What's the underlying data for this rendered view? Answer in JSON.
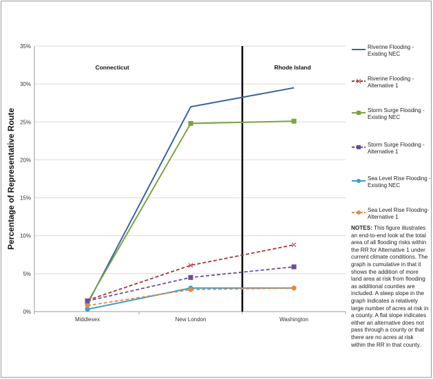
{
  "chart_data": {
    "type": "line",
    "ylabel": "Percentage of Representative Route",
    "categories": [
      "Middlesex",
      "New London",
      "Washington"
    ],
    "ylim": [
      0,
      35
    ],
    "yticks": [
      "0%",
      "5%",
      "10%",
      "15%",
      "20%",
      "25%",
      "30%",
      "35%"
    ],
    "grid": true,
    "legend_position": "right",
    "annotations": [
      {
        "text": "Connecticut",
        "x": "Middlesex"
      },
      {
        "text": "Rhode Island",
        "x": "Washington"
      }
    ],
    "divider_between": [
      "New London",
      "Washington"
    ],
    "series": [
      {
        "name": "Riverine Flooding - Existing NEC",
        "values": [
          1.0,
          27.0,
          29.5
        ],
        "color": "#3b62a8",
        "dash": "solid",
        "marker": "none"
      },
      {
        "name": "Riverine Flooding - Alternative 1",
        "values": [
          1.5,
          6.1,
          8.8
        ],
        "color": "#b03030",
        "dash": "dashed",
        "marker": "x"
      },
      {
        "name": "Storm Surge Flooding - Existing NEC",
        "values": [
          1.2,
          24.8,
          25.1
        ],
        "color": "#7ba33e",
        "dash": "solid",
        "marker": "square"
      },
      {
        "name": "Storm Surge Flooding - Alternative 1",
        "values": [
          1.4,
          4.5,
          5.9
        ],
        "color": "#6b4c9a",
        "dash": "dashed",
        "marker": "square"
      },
      {
        "name": "Sea Level Rise Flooding - Existing NEC",
        "values": [
          0.3,
          3.1,
          3.1
        ],
        "color": "#3a9dc9",
        "dash": "solid",
        "marker": "circle"
      },
      {
        "name": "Sea Level Rise Flooding- Alternative 1",
        "values": [
          0.8,
          2.9,
          3.1
        ],
        "color": "#e38a3a",
        "dash": "dashed",
        "marker": "circle"
      }
    ]
  },
  "notes": {
    "heading": "NOTES:",
    "text": " This figure illustrates an end-to-end look at the total area of all flooding risks within the RR for Alternative 1 under current climate conditions. The graph is cumulative in that it shows the addition of more land area at risk from flooding as additional counties are included.  A steep slope in the graph indicates a relatively large number of acres at risk in a county.  A  flat slope indicates either an alternative does not pass through a county or that there are no acres at risk within the RR in that county."
  }
}
